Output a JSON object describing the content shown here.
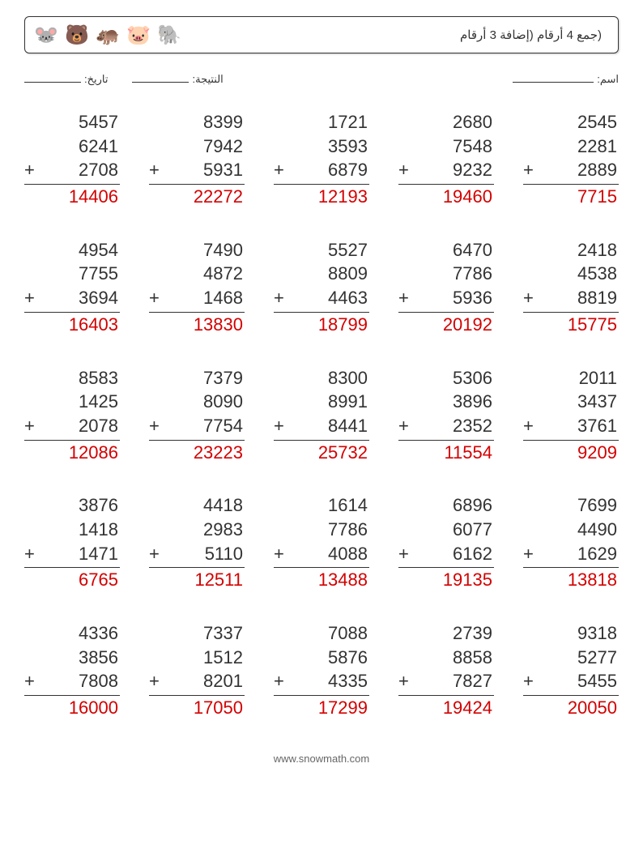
{
  "header": {
    "title": "(جمع 4 أرقام (إضافة 3 أرقام",
    "animals": [
      "🐭",
      "🐻",
      "🦛",
      "🐷",
      "🐘"
    ]
  },
  "info": {
    "name_label": "اسم:",
    "score_label": "النتيجة:",
    "date_label": "تاريخ:"
  },
  "problems": [
    {
      "a": "5457",
      "b": "6241",
      "c": "2708",
      "ans": "14406"
    },
    {
      "a": "8399",
      "b": "7942",
      "c": "5931",
      "ans": "22272"
    },
    {
      "a": "1721",
      "b": "3593",
      "c": "6879",
      "ans": "12193"
    },
    {
      "a": "2680",
      "b": "7548",
      "c": "9232",
      "ans": "19460"
    },
    {
      "a": "2545",
      "b": "2281",
      "c": "2889",
      "ans": "7715"
    },
    {
      "a": "4954",
      "b": "7755",
      "c": "3694",
      "ans": "16403"
    },
    {
      "a": "7490",
      "b": "4872",
      "c": "1468",
      "ans": "13830"
    },
    {
      "a": "5527",
      "b": "8809",
      "c": "4463",
      "ans": "18799"
    },
    {
      "a": "6470",
      "b": "7786",
      "c": "5936",
      "ans": "20192"
    },
    {
      "a": "2418",
      "b": "4538",
      "c": "8819",
      "ans": "15775"
    },
    {
      "a": "8583",
      "b": "1425",
      "c": "2078",
      "ans": "12086"
    },
    {
      "a": "7379",
      "b": "8090",
      "c": "7754",
      "ans": "23223"
    },
    {
      "a": "8300",
      "b": "8991",
      "c": "8441",
      "ans": "25732"
    },
    {
      "a": "5306",
      "b": "3896",
      "c": "2352",
      "ans": "11554"
    },
    {
      "a": "2011",
      "b": "3437",
      "c": "3761",
      "ans": "9209"
    },
    {
      "a": "3876",
      "b": "1418",
      "c": "1471",
      "ans": "6765"
    },
    {
      "a": "4418",
      "b": "2983",
      "c": "5110",
      "ans": "12511"
    },
    {
      "a": "1614",
      "b": "7786",
      "c": "4088",
      "ans": "13488"
    },
    {
      "a": "6896",
      "b": "6077",
      "c": "6162",
      "ans": "19135"
    },
    {
      "a": "7699",
      "b": "4490",
      "c": "1629",
      "ans": "13818"
    },
    {
      "a": "4336",
      "b": "3856",
      "c": "7808",
      "ans": "16000"
    },
    {
      "a": "7337",
      "b": "1512",
      "c": "8201",
      "ans": "17050"
    },
    {
      "a": "7088",
      "b": "5876",
      "c": "4335",
      "ans": "17299"
    },
    {
      "a": "2739",
      "b": "8858",
      "c": "7827",
      "ans": "19424"
    },
    {
      "a": "9318",
      "b": "5277",
      "c": "5455",
      "ans": "20050"
    }
  ],
  "footer": {
    "text": "www.snowmath.com"
  },
  "style": {
    "answer_color": "#d40000",
    "text_color": "#333333",
    "font_size_problem": 22,
    "font_size_title": 15,
    "columns": 5,
    "rows": 5
  }
}
